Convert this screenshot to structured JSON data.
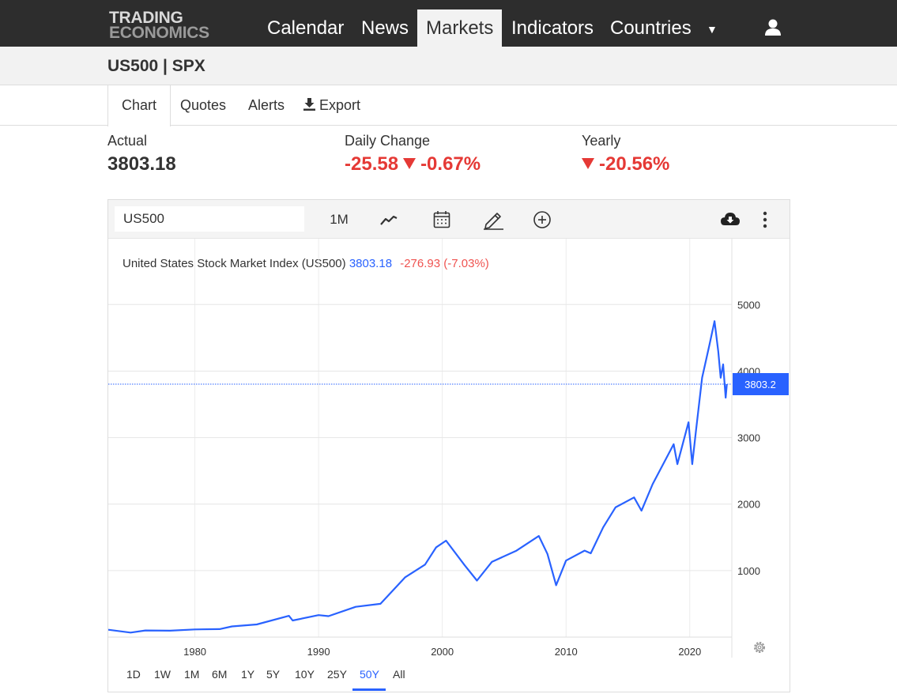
{
  "brand": {
    "line1": "TRADING",
    "line2": "ECONOMICS"
  },
  "nav": {
    "items": [
      {
        "label": "Calendar"
      },
      {
        "label": "News"
      },
      {
        "label": "Markets"
      },
      {
        "label": "Indicators"
      },
      {
        "label": "Countries"
      }
    ],
    "active": "Markets",
    "more_icon": "caret-down-icon",
    "user_icon": "user-icon"
  },
  "page": {
    "title": "US500 | SPX"
  },
  "tabs": [
    {
      "label": "Chart"
    },
    {
      "label": "Quotes"
    },
    {
      "label": "Alerts"
    },
    {
      "label": "Export",
      "icon": "download-icon"
    }
  ],
  "stats": {
    "actual": {
      "label": "Actual",
      "value": "3803.18"
    },
    "daily": {
      "label": "Daily Change",
      "value": "-25.58",
      "percent": "-0.67%"
    },
    "yearly": {
      "label": "Yearly",
      "percent": "-20.56%"
    }
  },
  "toolbar": {
    "symbol_value": "US500",
    "interval_label": "1M",
    "icons": [
      "line-chart-icon",
      "calendar-icon",
      "draw-pencil-icon",
      "add-circle-icon",
      "cloud-download-icon",
      "more-vertical-icon"
    ]
  },
  "caption": {
    "name": "United States Stock Market Index (US500)",
    "last": "3803.18",
    "change": "-276.93 (-7.03%)"
  },
  "price_tag": "3803.2",
  "ranges": [
    {
      "label": "1D"
    },
    {
      "label": "1W"
    },
    {
      "label": "1M"
    },
    {
      "label": "6M"
    },
    {
      "label": "1Y"
    },
    {
      "label": "5Y"
    },
    {
      "label": "10Y"
    },
    {
      "label": "25Y"
    },
    {
      "label": "50Y"
    },
    {
      "label": "All"
    }
  ],
  "selected_range": "50Y",
  "colors": {
    "line": "#2962ff",
    "negative": "#e53935",
    "nav_bg": "#2d2d2d"
  },
  "chart_data": {
    "type": "line",
    "series": [
      {
        "x": [
          1973,
          1974.8,
          1976,
          1978,
          1980,
          1982,
          1983,
          1985,
          1987.6,
          1987.9,
          1990,
          1990.8,
          1993,
          1995,
          1997,
          1998.6,
          1999.5,
          2000.3,
          2001.8,
          2002.8,
          2004,
          2006,
          2007.8,
          2008.5,
          2009.2,
          2010,
          2011.5,
          2012,
          2013,
          2014,
          2015.5,
          2016.1,
          2017,
          2018.7,
          2019,
          2019.9,
          2020.2,
          2020.5,
          2021,
          2021.6,
          2022,
          2022.3,
          2022.5,
          2022.7,
          2022.9,
          2023
        ],
        "y": [
          110,
          68,
          100,
          96,
          115,
          120,
          160,
          190,
          320,
          250,
          330,
          315,
          455,
          500,
          900,
          1090,
          1350,
          1450,
          1080,
          850,
          1130,
          1300,
          1520,
          1250,
          780,
          1150,
          1300,
          1260,
          1650,
          1950,
          2100,
          1900,
          2300,
          2900,
          2600,
          3230,
          2600,
          3100,
          3900,
          4400,
          4750,
          4300,
          3900,
          4100,
          3600,
          3803
        ]
      }
    ],
    "xticks": [
      1980,
      1990,
      2000,
      2010,
      2020
    ],
    "yticks": [
      1000,
      2000,
      3000,
      4000,
      5000
    ],
    "xlim": [
      1973,
      2023.4
    ],
    "ylim": [
      0,
      5990
    ],
    "last_value": 3803.18,
    "grid": true
  }
}
